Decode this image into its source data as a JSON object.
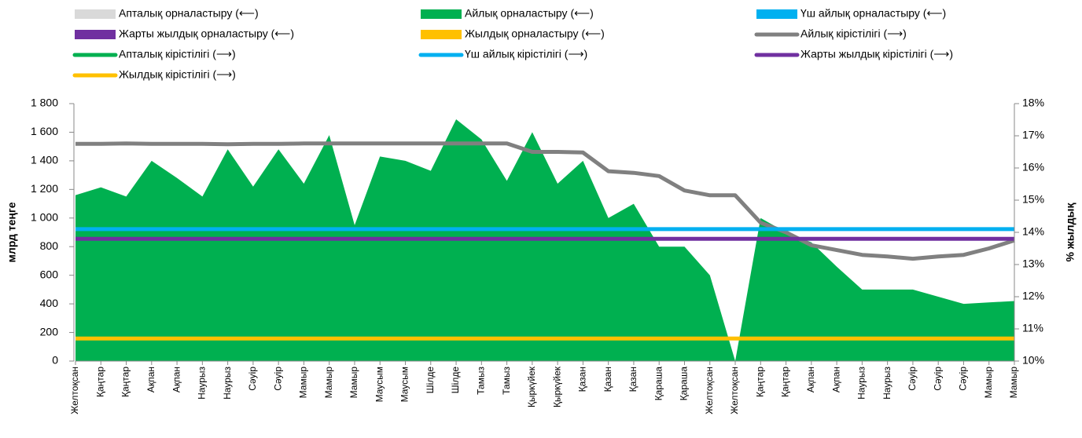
{
  "chart_data": {
    "type": "line",
    "y_label": "млрд теңге",
    "y2_label": "% жылдық",
    "categories": [
      "Желтоқсан",
      "Қаңтар",
      "Қаңтар",
      "Ақпан",
      "Ақпан",
      "Наурыз",
      "Наурыз",
      "Сәуір",
      "Сәуір",
      "Мамыр",
      "Мамыр",
      "Мамыр",
      "Маусым",
      "Маусым",
      "Шілде",
      "Шілде",
      "Тамыз",
      "Тамыз",
      "Қыркүйек",
      "Қыркүйек",
      "Қазан",
      "Қазан",
      "Қазан",
      "Қараша",
      "Қараша",
      "Желтоқсан",
      "Желтоқсан",
      "Қаңтар",
      "Қаңтар",
      "Ақпан",
      "Ақпан",
      "Наурыз",
      "Наурыз",
      "Сәуір",
      "Сәуір",
      "Сәуір",
      "Мамыр",
      "Мамыр"
    ],
    "ylim": [
      0,
      1800
    ],
    "yticks": [
      0,
      200,
      400,
      600,
      800,
      {
        "value": 1000,
        "label": "1 000"
      },
      {
        "value": 1200,
        "label": "1 200"
      },
      {
        "value": 1400,
        "label": "1 400"
      },
      {
        "value": 1600,
        "label": "1 600"
      },
      {
        "value": 1800,
        "label": "1 800"
      }
    ],
    "y2lim": [
      10,
      18
    ],
    "y2ticks": [
      {
        "value": 10,
        "label": "10%"
      },
      {
        "value": 11,
        "label": "11%"
      },
      {
        "value": 12,
        "label": "12%"
      },
      {
        "value": 13,
        "label": "13%"
      },
      {
        "value": 14,
        "label": "14%"
      },
      {
        "value": 15,
        "label": "15%"
      },
      {
        "value": 16,
        "label": "16%"
      },
      {
        "value": 17,
        "label": "17%"
      },
      {
        "value": 18,
        "label": "18%"
      }
    ],
    "series": [
      {
        "name": "Апталық орналастыру (⟵)",
        "color": "#d9d9d9",
        "mark": "bar",
        "values": [
          null,
          null,
          null,
          null,
          null,
          null,
          null,
          null,
          null,
          null,
          null,
          null,
          null,
          null,
          null,
          null,
          null,
          null,
          null,
          null,
          null,
          null,
          null,
          null,
          null,
          null,
          null,
          null,
          null,
          null,
          null,
          null,
          null,
          null,
          null,
          null,
          null,
          null
        ]
      },
      {
        "name": "Айлық орналастыру (⟵)",
        "color": "#00b050",
        "mark": "area",
        "values": [
          1160,
          1215,
          1150,
          1400,
          1280,
          1150,
          1480,
          1220,
          1480,
          1240,
          1580,
          950,
          1430,
          1400,
          1330,
          1690,
          1550,
          1260,
          1600,
          1240,
          1400,
          1000,
          1100,
          800,
          800,
          600,
          0,
          1000,
          900,
          830,
          660,
          500,
          500,
          500,
          450,
          400,
          410,
          420
        ]
      },
      {
        "name": "Үш айлық орналастыру (⟵)",
        "color": "#00b0f0",
        "mark": "bar",
        "values": [
          null,
          null,
          null,
          null,
          null,
          null,
          null,
          null,
          null,
          null,
          null,
          null,
          null,
          null,
          null,
          null,
          null,
          null,
          null,
          null,
          null,
          null,
          null,
          null,
          null,
          null,
          null,
          null,
          null,
          null,
          null,
          null,
          null,
          null,
          null,
          null,
          null,
          null
        ]
      },
      {
        "name": "Жарты жылдық орналастыру (⟵)",
        "color": "#7030a0",
        "mark": "bar",
        "values": [
          null,
          null,
          null,
          null,
          null,
          null,
          null,
          null,
          null,
          null,
          null,
          null,
          null,
          null,
          null,
          null,
          null,
          null,
          null,
          null,
          null,
          null,
          null,
          null,
          null,
          null,
          null,
          null,
          null,
          null,
          null,
          null,
          null,
          null,
          null,
          null,
          null,
          null
        ]
      },
      {
        "name": "Жылдық орналастыру (⟵)",
        "color": "#ffc000",
        "mark": "bar",
        "values": [
          null,
          null,
          null,
          null,
          null,
          null,
          null,
          null,
          null,
          null,
          null,
          null,
          null,
          null,
          null,
          null,
          null,
          null,
          null,
          null,
          null,
          null,
          null,
          null,
          null,
          null,
          null,
          null,
          null,
          null,
          null,
          null,
          null,
          null,
          null,
          null,
          null,
          null
        ]
      },
      {
        "name": "Айлық кірістілігі (⟶)",
        "color": "#808080",
        "mark": "line",
        "axis": "y2",
        "values": [
          16.75,
          16.75,
          16.76,
          16.75,
          16.75,
          16.75,
          16.74,
          16.75,
          16.75,
          16.76,
          16.76,
          16.76,
          16.76,
          16.76,
          16.76,
          16.76,
          16.76,
          16.76,
          16.5,
          16.5,
          16.48,
          15.9,
          15.85,
          15.75,
          15.3,
          15.15,
          15.15,
          14.3,
          14.0,
          13.6,
          13.45,
          13.3,
          13.25,
          13.18,
          13.25,
          13.3,
          13.5,
          13.75
        ]
      },
      {
        "name": "Апталық кірістілігі (⟶)",
        "color": "#00b050",
        "mark": "line",
        "axis": "y2",
        "values": [
          null,
          null,
          null,
          null,
          null,
          null,
          null,
          null,
          null,
          null,
          null,
          null,
          null,
          null,
          null,
          null,
          null,
          null,
          null,
          null,
          null,
          null,
          null,
          null,
          null,
          null,
          null,
          null,
          null,
          null,
          null,
          null,
          null,
          null,
          null,
          null,
          null,
          null
        ]
      },
      {
        "name": "Үш айлық кірістілігі (⟶)",
        "color": "#00b0f0",
        "mark": "line",
        "axis": "y2",
        "values": [
          14.1,
          14.1,
          14.1,
          14.1,
          14.1,
          14.1,
          14.1,
          14.1,
          14.1,
          14.1,
          14.1,
          14.1,
          14.1,
          14.1,
          14.1,
          14.1,
          14.1,
          14.1,
          14.1,
          14.1,
          14.1,
          14.1,
          14.1,
          14.1,
          14.1,
          14.1,
          14.1,
          14.1,
          14.1,
          14.1,
          14.1,
          14.1,
          14.1,
          14.1,
          14.1,
          14.1,
          14.1,
          14.1
        ]
      },
      {
        "name": "Жарты жылдық кірістілігі (⟶)",
        "color": "#7030a0",
        "mark": "line",
        "axis": "y2",
        "values": [
          13.8,
          13.8,
          13.8,
          13.8,
          13.8,
          13.8,
          13.8,
          13.8,
          13.8,
          13.8,
          13.8,
          13.8,
          13.8,
          13.8,
          13.8,
          13.8,
          13.8,
          13.8,
          13.8,
          13.8,
          13.8,
          13.8,
          13.8,
          13.8,
          13.8,
          13.8,
          13.8,
          13.8,
          13.8,
          13.8,
          13.8,
          13.8,
          13.8,
          13.8,
          13.8,
          13.8,
          13.8,
          13.8
        ]
      },
      {
        "name": "Жылдық кірістілігі (⟶)",
        "color": "#ffc000",
        "mark": "line",
        "axis": "y2",
        "values": [
          10.7,
          10.7,
          10.7,
          10.7,
          10.7,
          10.7,
          10.7,
          10.7,
          10.7,
          10.7,
          10.7,
          10.7,
          10.7,
          10.7,
          10.7,
          10.7,
          10.7,
          10.7,
          10.7,
          10.7,
          10.7,
          10.7,
          10.7,
          10.7,
          10.7,
          10.7,
          10.7,
          10.7,
          10.7,
          10.7,
          10.7,
          10.7,
          10.7,
          10.7,
          10.7,
          10.7,
          10.7,
          10.7
        ]
      }
    ]
  }
}
